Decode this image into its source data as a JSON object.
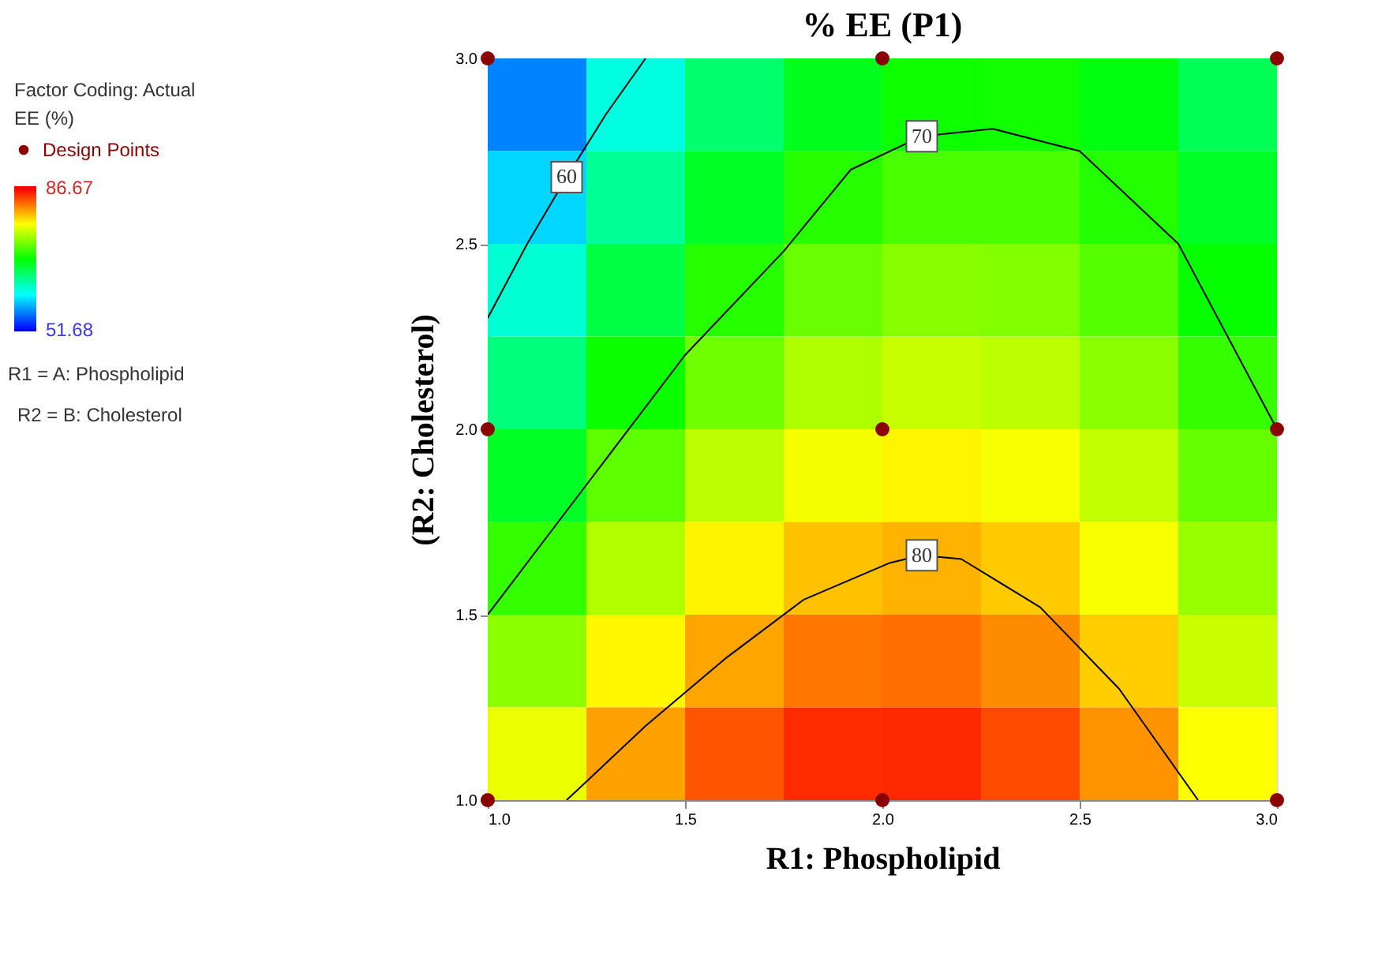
{
  "chart_data": {
    "type": "heatmap",
    "title": "% EE (P1)",
    "xlabel": "R1: Phospholipid",
    "ylabel": "(R2: Cholesterol)",
    "legend_title": "EE (%)",
    "x": [
      1.125,
      1.375,
      1.625,
      1.875,
      2.125,
      2.375,
      2.625,
      2.875
    ],
    "y": [
      2.875,
      2.625,
      2.375,
      2.125,
      1.875,
      1.625,
      1.375,
      1.125
    ],
    "cells": [
      [
        56.17,
        61.45,
        65.45,
        68.17,
        69.61,
        69.79,
        68.69,
        66.31
      ],
      [
        59.03,
        64.11,
        67.92,
        70.44,
        71.7,
        71.68,
        70.39,
        67.81
      ],
      [
        61.93,
        66.82,
        70.44,
        72.77,
        73.83,
        73.62,
        72.14,
        69.37
      ],
      [
        64.88,
        69.58,
        73.0,
        75.14,
        76.02,
        75.62,
        73.94,
        70.98
      ],
      [
        67.91,
        72.41,
        75.64,
        77.58,
        78.26,
        77.66,
        75.79,
        72.63
      ],
      [
        70.96,
        75.27,
        78.31,
        80.06,
        80.54,
        79.75,
        77.69,
        74.34
      ],
      [
        74.06,
        78.18,
        81.02,
        82.58,
        82.88,
        81.9,
        79.64,
        76.1
      ],
      [
        77.22,
        81.15,
        83.79,
        85.16,
        85.26,
        84.09,
        81.63,
        77.9
      ]
    ],
    "clim": [
      51.68,
      86.67
    ],
    "cticks": [
      51.68,
      86.67
    ],
    "series": [
      {
        "name": "60",
        "type": "line",
        "color": "#000000",
        "x": [
          1.0,
          1.1,
          1.2,
          1.3,
          1.4
        ],
        "values": [
          2.3,
          2.5,
          2.68,
          2.85,
          3.0
        ]
      },
      {
        "name": "70",
        "type": "line",
        "color": "#000000",
        "x": [
          1.0,
          1.25,
          1.5,
          1.75,
          1.92,
          2.1,
          2.28,
          2.5,
          2.75,
          3.0
        ],
        "values": [
          1.5,
          1.85,
          2.2,
          2.48,
          2.7,
          2.79,
          2.81,
          2.75,
          2.5,
          2.0
        ]
      },
      {
        "name": "80",
        "type": "line",
        "color": "#000000",
        "x": [
          1.2,
          1.4,
          1.6,
          1.8,
          2.02,
          2.1,
          2.2,
          2.4,
          2.6,
          2.8
        ],
        "values": [
          1.0,
          1.2,
          1.38,
          1.54,
          1.64,
          1.66,
          1.65,
          1.52,
          1.3,
          1.0
        ]
      },
      {
        "name": "Design Points",
        "type": "scatter",
        "color": "#8b0000",
        "marker": "circle",
        "x": [
          1,
          2,
          3,
          1,
          2,
          3,
          1,
          2,
          3
        ],
        "values": [
          3,
          3,
          3,
          2,
          2,
          2,
          1,
          1,
          1
        ]
      }
    ],
    "xlim": [
      1.0,
      3.0
    ],
    "ylim": [
      1.0,
      3.0
    ],
    "xticks": [
      {
        "value": 1.0,
        "label": "1.0"
      },
      {
        "value": 1.5,
        "label": "1.5"
      },
      {
        "value": 2.0,
        "label": "2.0"
      },
      {
        "value": 2.5,
        "label": "2.5"
      },
      {
        "value": 3.0,
        "label": "3.0"
      }
    ],
    "yticks": [
      {
        "value": 1.0,
        "label": "1.0"
      },
      {
        "value": 1.5,
        "label": "1.5"
      },
      {
        "value": 2.0,
        "label": "2.0"
      },
      {
        "value": 2.5,
        "label": "2.5"
      },
      {
        "value": 3.0,
        "label": "3.0"
      }
    ],
    "annotations": [
      "Factor Coding: Actual",
      "R1 = A: Phospholipid",
      "R2 = B: Cholesterol"
    ],
    "grid": false,
    "legend": "left",
    "line_style": "solid"
  }
}
